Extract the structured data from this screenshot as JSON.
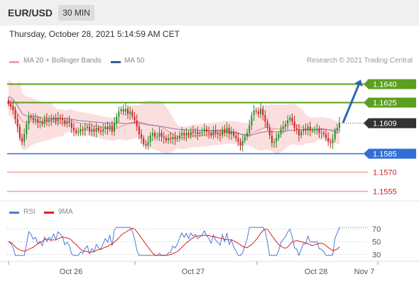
{
  "header": {
    "symbol": "EUR/USD",
    "timeframe": "30 MIN"
  },
  "datetime": "Thursday, October 28, 2021 5:14:59 AM CET",
  "legend": {
    "bollinger": "MA 20 + Bollinger Bands",
    "ma50": "MA 50",
    "research": "Research © 2021 Trading Central",
    "rsi": "RSI",
    "rsi_ma": "9MA"
  },
  "colors": {
    "up": "#2a8c2a",
    "down": "#cc2222",
    "ma20_band": "#f7c5c5",
    "ma20_line": "#f08a8a",
    "ma50": "#8a7ab5",
    "resistance": "#5aa01e",
    "support_blue": "#2f6fd6",
    "support_red": "#f0a0a0",
    "rsi": "#4a7bd8",
    "rsi_ma": "#dd2222",
    "arrow": "#2f64b8"
  },
  "chart_data": [
    {
      "type": "candlestick",
      "title": "EUR/USD",
      "timeframe": "30 MIN",
      "x_labels": [
        "Oct 26",
        "Oct 27",
        "Oct 28",
        "Nov 7"
      ],
      "ylim": [
        1.155,
        1.165
      ],
      "current_price": 1.1609,
      "levels": [
        {
          "value": 1.164,
          "label": "1.1640",
          "kind": "resistance"
        },
        {
          "value": 1.1625,
          "label": "1.1625",
          "kind": "resistance"
        },
        {
          "value": 1.1585,
          "label": "1.1585",
          "kind": "support"
        },
        {
          "value": 1.157,
          "label": "1.1570",
          "kind": "support"
        },
        {
          "value": 1.1555,
          "label": "1.1555",
          "kind": "support"
        }
      ],
      "close": [
        1.1624,
        1.1622,
        1.1619,
        1.1612,
        1.1606,
        1.1597,
        1.1594,
        1.16,
        1.1608,
        1.1614,
        1.1613,
        1.1611,
        1.1612,
        1.1609,
        1.161,
        1.1608,
        1.1612,
        1.161,
        1.1612,
        1.1611,
        1.1613,
        1.161,
        1.1613,
        1.1612,
        1.1611,
        1.1608,
        1.161,
        1.1609,
        1.1605,
        1.1603,
        1.1601,
        1.1602,
        1.1604,
        1.1603,
        1.1605,
        1.1606,
        1.1602,
        1.1604,
        1.1602,
        1.1605,
        1.1603,
        1.1602,
        1.1604,
        1.1606,
        1.1604,
        1.1607,
        1.1602,
        1.1609,
        1.1614,
        1.1618,
        1.162,
        1.1618,
        1.162,
        1.1616,
        1.1618,
        1.1614,
        1.1611,
        1.1606,
        1.16,
        1.1597,
        1.1592,
        1.1591,
        1.1594,
        1.1599,
        1.1601,
        1.1598,
        1.1598,
        1.1601,
        1.1598,
        1.1597,
        1.1595,
        1.1597,
        1.1596,
        1.1598,
        1.1596,
        1.1597,
        1.1599,
        1.1601,
        1.1599,
        1.1601,
        1.1599,
        1.1602,
        1.1601,
        1.1602,
        1.16,
        1.1601,
        1.1602,
        1.1604,
        1.1602,
        1.1601,
        1.1599,
        1.1603,
        1.1601,
        1.16,
        1.1599,
        1.1604,
        1.1601,
        1.1605,
        1.16,
        1.1602,
        1.1599,
        1.1597,
        1.1594,
        1.1591,
        1.1595,
        1.1598,
        1.1601,
        1.1607,
        1.1615,
        1.1619,
        1.1618,
        1.1616,
        1.162,
        1.1615,
        1.161,
        1.1605,
        1.1599,
        1.1593,
        1.1594,
        1.1597,
        1.16,
        1.1604,
        1.1606,
        1.1608,
        1.1611,
        1.1613,
        1.161,
        1.1605,
        1.1604,
        1.1599,
        1.1602,
        1.1604,
        1.1603,
        1.1606,
        1.1603,
        1.1603,
        1.1603,
        1.1604,
        1.1601,
        1.1601,
        1.16,
        1.1597,
        1.1594,
        1.1593,
        1.1596,
        1.1603,
        1.1605,
        1.1609
      ],
      "series": [
        {
          "name": "MA 20 + Bollinger Bands"
        },
        {
          "name": "MA 50"
        }
      ]
    },
    {
      "type": "line",
      "title": "RSI",
      "yticks": [
        70,
        50,
        30
      ],
      "ylim": [
        20,
        80
      ],
      "series": [
        {
          "name": "RSI",
          "color": "#4a7bd8"
        },
        {
          "name": "9MA",
          "color": "#dd2222"
        }
      ]
    }
  ]
}
